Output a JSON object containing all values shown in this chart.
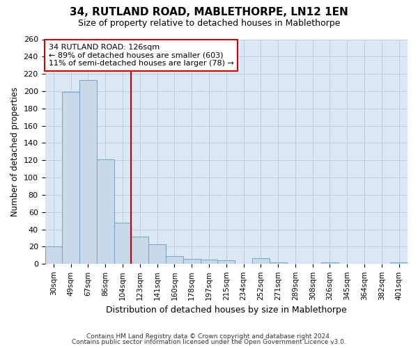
{
  "title1": "34, RUTLAND ROAD, MABLETHORPE, LN12 1EN",
  "title2": "Size of property relative to detached houses in Mablethorpe",
  "xlabel": "Distribution of detached houses by size in Mablethorpe",
  "ylabel": "Number of detached properties",
  "categories": [
    "30sqm",
    "49sqm",
    "67sqm",
    "86sqm",
    "104sqm",
    "123sqm",
    "141sqm",
    "160sqm",
    "178sqm",
    "197sqm",
    "215sqm",
    "234sqm",
    "252sqm",
    "271sqm",
    "289sqm",
    "308sqm",
    "326sqm",
    "345sqm",
    "364sqm",
    "382sqm",
    "401sqm"
  ],
  "values": [
    20,
    199,
    213,
    121,
    48,
    32,
    23,
    9,
    6,
    5,
    4,
    0,
    7,
    2,
    0,
    0,
    2,
    0,
    0,
    0,
    2
  ],
  "bar_color": "#c9d9ea",
  "bar_edge_color": "#7aaac8",
  "vline_index": 5,
  "vline_color": "#cc0000",
  "annotation_line1": "34 RUTLAND ROAD: 126sqm",
  "annotation_line2": "← 89% of detached houses are smaller (603)",
  "annotation_line3": "11% of semi-detached houses are larger (78) →",
  "annotation_box_color": "#ffffff",
  "annotation_box_edge": "#cc0000",
  "ylim": [
    0,
    260
  ],
  "yticks": [
    0,
    20,
    40,
    60,
    80,
    100,
    120,
    140,
    160,
    180,
    200,
    220,
    240,
    260
  ],
  "grid_color": "#c0cfe0",
  "background_color": "#dce8f5",
  "footnote1": "Contains HM Land Registry data © Crown copyright and database right 2024.",
  "footnote2": "Contains public sector information licensed under the Open Government Licence v3.0."
}
